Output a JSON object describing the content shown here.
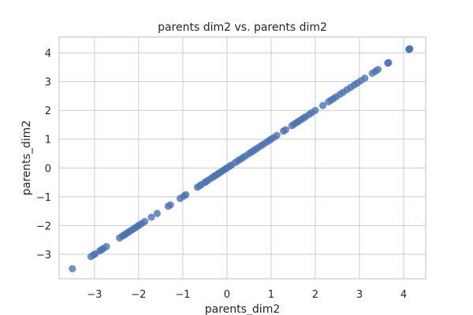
{
  "chart_data": {
    "type": "scatter",
    "title": "parents dim2 vs. parents dim2",
    "xlabel": "parents_dim2",
    "ylabel": "parents_dim2",
    "xlim": [
      -3.8,
      4.5
    ],
    "ylim": [
      -3.85,
      4.55
    ],
    "x_ticks": [
      -3,
      -2,
      -1,
      0,
      1,
      2,
      3,
      4
    ],
    "y_ticks": [
      -3,
      -2,
      -1,
      0,
      1,
      2,
      3,
      4
    ],
    "grid": true,
    "marker_color": "#4c72b0",
    "series": [
      {
        "x": [
          -3.5,
          -3.08,
          -3.02,
          -2.98,
          -2.88,
          -2.84,
          -2.8,
          -2.73,
          -2.43,
          -2.37,
          -2.33,
          -2.3,
          -2.26,
          -2.22,
          -2.17,
          -2.12,
          -2.07,
          -2.02,
          -1.98,
          -1.93,
          -1.86,
          -1.71,
          -1.58,
          -1.33,
          -1.28,
          -1.06,
          -0.98,
          -0.93,
          -0.67,
          -0.62,
          -0.58,
          -0.5,
          -0.47,
          -0.42,
          -0.35,
          -0.3,
          -0.27,
          -0.22,
          -0.18,
          -0.13,
          -0.08,
          -0.03,
          0.0,
          0.06,
          0.1,
          0.19,
          0.25,
          0.3,
          0.36,
          0.42,
          0.5,
          0.55,
          0.6,
          0.65,
          0.7,
          0.77,
          0.83,
          0.9,
          0.96,
          1.0,
          1.06,
          1.13,
          1.28,
          1.33,
          1.47,
          1.52,
          1.58,
          1.62,
          1.68,
          1.73,
          1.78,
          1.86,
          1.92,
          2.0,
          2.17,
          2.3,
          2.36,
          2.41,
          2.47,
          2.56,
          2.63,
          2.72,
          2.8,
          2.88,
          2.95,
          3.03,
          3.12,
          3.29,
          3.36,
          3.42,
          3.64,
          3.66,
          4.12,
          4.13,
          4.14
        ],
        "y": [
          -3.5,
          -3.08,
          -3.02,
          -2.98,
          -2.88,
          -2.84,
          -2.8,
          -2.73,
          -2.43,
          -2.37,
          -2.33,
          -2.3,
          -2.26,
          -2.22,
          -2.17,
          -2.12,
          -2.07,
          -2.02,
          -1.98,
          -1.93,
          -1.86,
          -1.71,
          -1.58,
          -1.33,
          -1.28,
          -1.06,
          -0.98,
          -0.93,
          -0.67,
          -0.62,
          -0.58,
          -0.5,
          -0.47,
          -0.42,
          -0.35,
          -0.3,
          -0.27,
          -0.22,
          -0.18,
          -0.13,
          -0.08,
          -0.03,
          0.0,
          0.06,
          0.1,
          0.19,
          0.25,
          0.3,
          0.36,
          0.42,
          0.5,
          0.55,
          0.6,
          0.65,
          0.7,
          0.77,
          0.83,
          0.9,
          0.96,
          1.0,
          1.06,
          1.13,
          1.28,
          1.33,
          1.47,
          1.52,
          1.58,
          1.62,
          1.68,
          1.73,
          1.78,
          1.86,
          1.92,
          2.0,
          2.17,
          2.3,
          2.36,
          2.41,
          2.47,
          2.56,
          2.63,
          2.72,
          2.8,
          2.88,
          2.95,
          3.03,
          3.12,
          3.29,
          3.36,
          3.42,
          3.64,
          3.66,
          4.12,
          4.13,
          4.14
        ]
      }
    ]
  }
}
